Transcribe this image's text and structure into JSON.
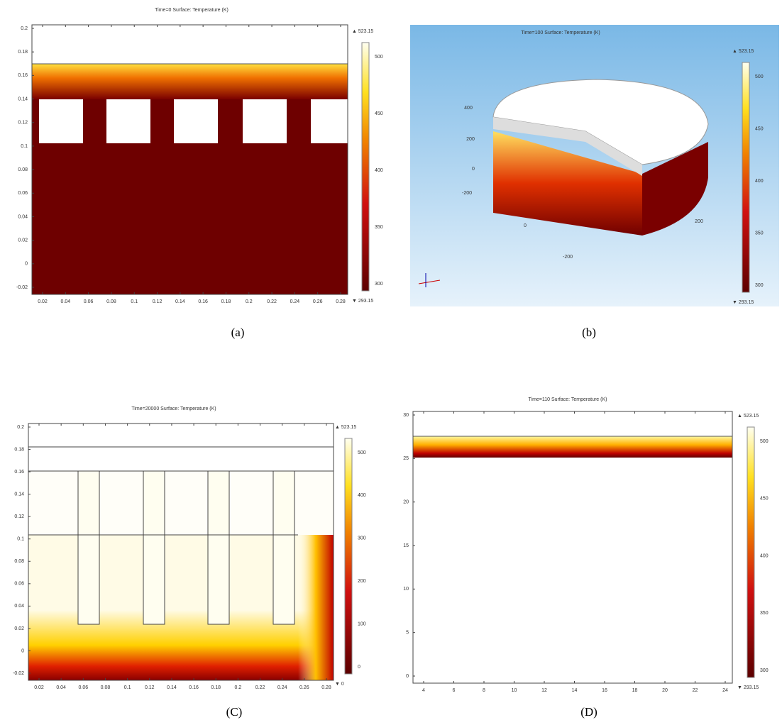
{
  "panels": [
    {
      "title": "Time=0  Surface: Temperature (K)",
      "caption": "(a)",
      "y_ticks": [
        "0.2",
        "0.18",
        "0.16",
        "0.14",
        "0.12",
        "0.1",
        "0.08",
        "0.06",
        "0.04",
        "0.02",
        "0",
        "-0.02"
      ],
      "x_ticks": [
        "0.02",
        "0.04",
        "0.06",
        "0.08",
        "0.1",
        "0.12",
        "0.14",
        "0.16",
        "0.18",
        "0.2",
        "0.22",
        "0.24",
        "0.26",
        "0.28"
      ],
      "colorbar": {
        "max": "▲ 523.15",
        "min": "▼ 293.15",
        "ticks": [
          "500",
          "450",
          "400",
          "350",
          "300"
        ]
      }
    },
    {
      "title": "Time=100  Surface: Temperature (K)",
      "caption": "(b)",
      "axis_labels": [
        "400",
        "200",
        "0",
        "-200",
        "0",
        "200",
        "-200"
      ],
      "colorbar": {
        "max": "▲ 523.15",
        "min": "▼ 293.15",
        "ticks": [
          "500",
          "450",
          "400",
          "350",
          "300"
        ]
      }
    },
    {
      "title": "Time=20000  Surface: Temperature (K)",
      "caption": "(C)",
      "y_ticks": [
        "0.2",
        "0.18",
        "0.16",
        "0.14",
        "0.12",
        "0.1",
        "0.08",
        "0.06",
        "0.04",
        "0.02",
        "0",
        "-0.02"
      ],
      "x_ticks": [
        "0.02",
        "0.04",
        "0.06",
        "0.08",
        "0.1",
        "0.12",
        "0.14",
        "0.16",
        "0.18",
        "0.2",
        "0.22",
        "0.24",
        "0.26",
        "0.28"
      ],
      "colorbar": {
        "max": "▲ 523.15",
        "min": "▼ 0",
        "ticks": [
          "500",
          "400",
          "300",
          "200",
          "100",
          "0"
        ]
      }
    },
    {
      "title": "Time=110  Surface: Temperature (K)",
      "caption": "(D)",
      "y_ticks": [
        "30",
        "25",
        "20",
        "15",
        "10",
        "5",
        "0"
      ],
      "x_ticks": [
        "4",
        "6",
        "8",
        "10",
        "12",
        "14",
        "16",
        "18",
        "20",
        "22",
        "24"
      ],
      "colorbar": {
        "max": "▲ 523.15",
        "min": "▼ 293.15",
        "ticks": [
          "500",
          "450",
          "400",
          "350",
          "300"
        ]
      }
    }
  ]
}
